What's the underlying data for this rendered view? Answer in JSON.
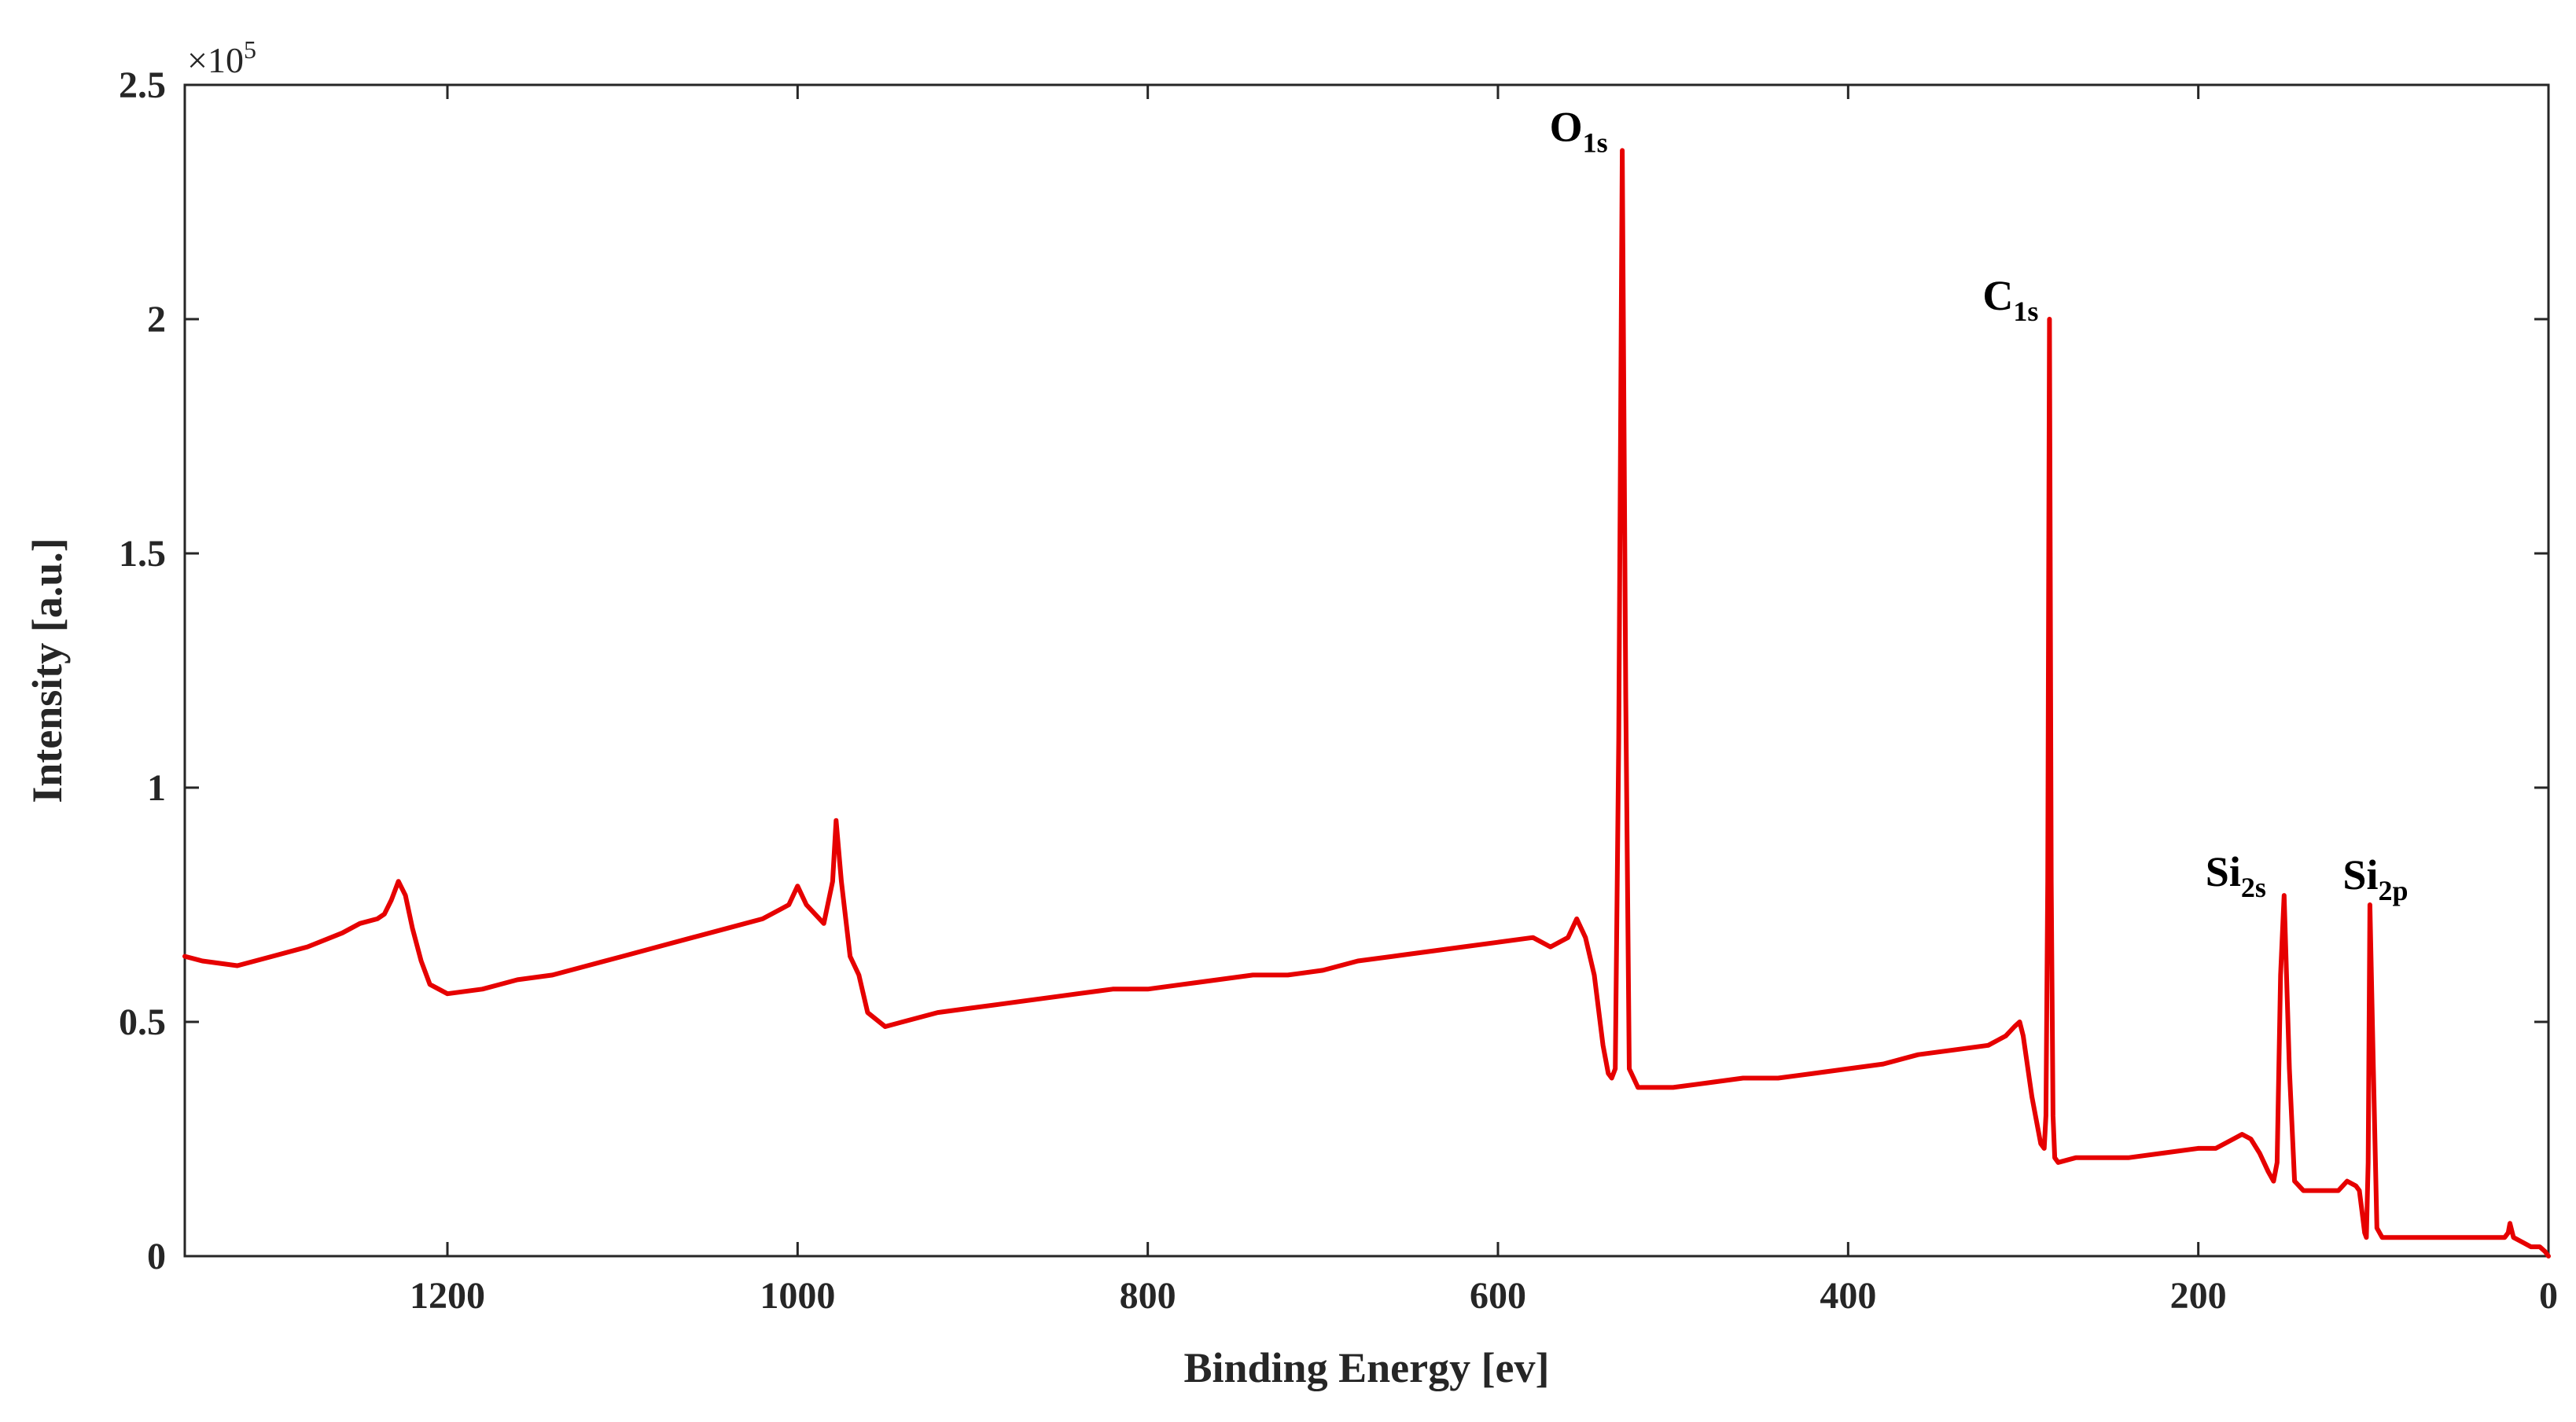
{
  "chart_data": {
    "type": "line",
    "title": "",
    "xlabel": "Binding Energy [ev]",
    "ylabel": "Intensity [a.u.]",
    "y_multiplier": "×10",
    "y_multiplier_exp": "5",
    "xlim": [
      1350,
      0
    ],
    "x_reversed": true,
    "ylim": [
      0,
      2.5
    ],
    "x_ticks": [
      1200,
      1000,
      800,
      600,
      400,
      200,
      0
    ],
    "x_tick_labels": [
      "1200",
      "1000",
      "800",
      "600",
      "400",
      "200",
      "0"
    ],
    "y_ticks": [
      0,
      0.5,
      1,
      1.5,
      2,
      2.5
    ],
    "y_tick_labels": [
      "0",
      "0.5",
      "1",
      "1.5",
      "2",
      "2.5"
    ],
    "grid": false,
    "line_color": "#e60000",
    "series": [
      {
        "values_x": [
          1350,
          1340,
          1320,
          1300,
          1280,
          1260,
          1250,
          1240,
          1236,
          1232,
          1228,
          1224,
          1220,
          1215,
          1210,
          1200,
          1180,
          1160,
          1140,
          1120,
          1100,
          1080,
          1060,
          1040,
          1020,
          1010,
          1005,
          1000,
          995,
          990,
          985,
          980,
          978,
          975,
          970,
          965,
          960,
          950,
          940,
          920,
          900,
          880,
          860,
          840,
          820,
          800,
          780,
          760,
          740,
          720,
          700,
          680,
          660,
          640,
          620,
          600,
          580,
          570,
          560,
          555,
          550,
          545,
          540,
          537,
          535,
          533,
          531,
          529,
          527,
          525,
          520,
          510,
          500,
          480,
          460,
          440,
          420,
          400,
          380,
          360,
          340,
          320,
          310,
          305,
          302,
          300,
          295,
          292,
          290,
          288,
          287,
          286,
          285,
          284,
          283,
          282,
          280,
          270,
          260,
          240,
          220,
          200,
          190,
          180,
          175,
          170,
          165,
          160,
          157,
          155,
          153,
          151,
          148,
          145,
          140,
          130,
          120,
          115,
          110,
          108,
          106,
          105,
          104,
          103,
          102,
          100,
          98,
          95,
          90,
          80,
          70,
          60,
          50,
          40,
          30,
          25,
          23,
          22,
          20,
          15,
          10,
          5,
          2,
          0
        ],
        "values_y": [
          0.64,
          0.63,
          0.62,
          0.64,
          0.66,
          0.69,
          0.71,
          0.72,
          0.73,
          0.76,
          0.8,
          0.77,
          0.7,
          0.63,
          0.58,
          0.56,
          0.57,
          0.59,
          0.6,
          0.62,
          0.64,
          0.66,
          0.68,
          0.7,
          0.72,
          0.74,
          0.75,
          0.79,
          0.75,
          0.73,
          0.71,
          0.8,
          0.93,
          0.8,
          0.64,
          0.6,
          0.52,
          0.49,
          0.5,
          0.52,
          0.53,
          0.54,
          0.55,
          0.56,
          0.57,
          0.57,
          0.58,
          0.59,
          0.6,
          0.6,
          0.61,
          0.63,
          0.64,
          0.65,
          0.66,
          0.67,
          0.68,
          0.66,
          0.68,
          0.72,
          0.68,
          0.6,
          0.45,
          0.39,
          0.38,
          0.4,
          1.1,
          2.36,
          1.2,
          0.4,
          0.36,
          0.36,
          0.36,
          0.37,
          0.38,
          0.38,
          0.39,
          0.4,
          0.41,
          0.43,
          0.44,
          0.45,
          0.47,
          0.49,
          0.5,
          0.47,
          0.34,
          0.28,
          0.24,
          0.23,
          0.3,
          0.8,
          2.0,
          0.8,
          0.3,
          0.21,
          0.2,
          0.21,
          0.21,
          0.21,
          0.22,
          0.23,
          0.23,
          0.25,
          0.26,
          0.25,
          0.22,
          0.18,
          0.16,
          0.2,
          0.6,
          0.77,
          0.4,
          0.16,
          0.14,
          0.14,
          0.14,
          0.16,
          0.15,
          0.14,
          0.08,
          0.05,
          0.04,
          0.2,
          0.75,
          0.4,
          0.06,
          0.04,
          0.04,
          0.04,
          0.04,
          0.04,
          0.04,
          0.04,
          0.04,
          0.04,
          0.05,
          0.07,
          0.04,
          0.03,
          0.02,
          0.02,
          0.01,
          0.0
        ]
      }
    ],
    "annotations": [
      {
        "base": "O",
        "sub": "1s",
        "x": 531,
        "y": 2.36
      },
      {
        "base": "C",
        "sub": "1s",
        "x": 285,
        "y": 2.0
      },
      {
        "base": "Si",
        "sub": "2s",
        "x": 155,
        "y": 0.77
      },
      {
        "base": "Si",
        "sub": "2p",
        "x": 104,
        "y": 0.75
      }
    ]
  }
}
